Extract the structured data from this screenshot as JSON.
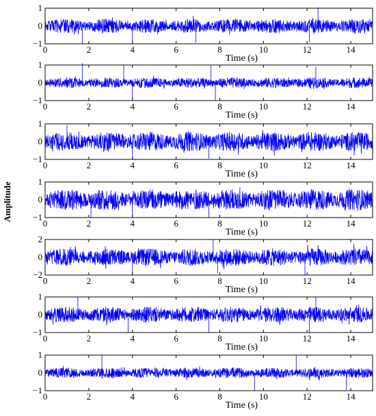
{
  "figure": {
    "shared_ylabel": "Amplitude"
  },
  "chart_data": [
    {
      "type": "line",
      "xlabel": "Time (s)",
      "ylabel": "",
      "xlim": [
        0,
        15
      ],
      "ylim": [
        -1,
        1
      ],
      "xticks": [
        0,
        2,
        4,
        6,
        8,
        10,
        12,
        14
      ],
      "yticks": [
        -1,
        0,
        1
      ],
      "grid": false,
      "series_color": "#0000ff",
      "signal_type": "vibration waveform",
      "envelope": 0.4,
      "period_s": 1.9,
      "peak_times": [
        1.7,
        4.0,
        6.9,
        12.1,
        12.5
      ],
      "peak_values": [
        -1.0,
        -0.9,
        -0.95,
        -0.9,
        1.05
      ]
    },
    {
      "type": "line",
      "xlabel": "Time (s)",
      "ylabel": "",
      "xlim": [
        0,
        15
      ],
      "ylim": [
        -1,
        1
      ],
      "xticks": [
        0,
        2,
        4,
        6,
        8,
        10,
        12,
        14
      ],
      "yticks": [
        -1,
        0,
        1
      ],
      "grid": false,
      "series_color": "#0000ff",
      "signal_type": "vibration waveform",
      "envelope": 0.3,
      "period_s": 1.9,
      "peak_times": [
        1.7,
        3.6,
        4.0,
        7.6,
        7.8,
        12.4
      ],
      "peak_values": [
        1.1,
        1.0,
        -0.9,
        1.0,
        -1.0,
        0.9
      ]
    },
    {
      "type": "line",
      "xlabel": "Time (s)",
      "ylabel": "",
      "xlim": [
        0,
        15
      ],
      "ylim": [
        -1,
        1
      ],
      "xticks": [
        0,
        2,
        4,
        6,
        8,
        10,
        12,
        14
      ],
      "yticks": [
        -1,
        0,
        1
      ],
      "grid": false,
      "series_color": "#0000ff",
      "signal_type": "vibration waveform",
      "envelope": 0.55,
      "period_s": 1.9,
      "peak_times": [
        1.0,
        4.0,
        7.5
      ],
      "peak_values": [
        0.95,
        -0.95,
        -0.95
      ]
    },
    {
      "type": "line",
      "xlabel": "Time (s)",
      "ylabel": "",
      "xlim": [
        0,
        15
      ],
      "ylim": [
        -1,
        1
      ],
      "xticks": [
        0,
        2,
        4,
        6,
        8,
        10,
        12,
        14
      ],
      "yticks": [
        -1,
        0,
        1
      ],
      "grid": false,
      "series_color": "#0000ff",
      "signal_type": "vibration waveform",
      "envelope": 0.6,
      "period_s": 1.9,
      "peak_times": [
        2.1,
        4.0,
        7.5
      ],
      "peak_values": [
        -1.0,
        -1.0,
        -1.0
      ]
    },
    {
      "type": "line",
      "xlabel": "Time (s)",
      "ylabel": "",
      "xlim": [
        0,
        15
      ],
      "ylim": [
        -2,
        2
      ],
      "xticks": [
        0,
        2,
        4,
        6,
        8,
        10,
        12,
        14
      ],
      "yticks": [
        -2,
        0,
        2
      ],
      "grid": false,
      "series_color": "#0000ff",
      "signal_type": "vibration waveform",
      "envelope": 0.5,
      "period_s": 1.9,
      "peak_times": [
        4.0,
        7.7,
        7.9,
        11.9
      ],
      "peak_values": [
        -2.0,
        2.0,
        -1.8,
        -2.0
      ]
    },
    {
      "type": "line",
      "xlabel": "Time (s)",
      "ylabel": "",
      "xlim": [
        0,
        15
      ],
      "ylim": [
        -1,
        1
      ],
      "xticks": [
        0,
        2,
        4,
        6,
        8,
        10,
        12,
        14
      ],
      "yticks": [
        -1,
        0,
        1
      ],
      "grid": false,
      "series_color": "#0000ff",
      "signal_type": "vibration waveform",
      "envelope": 0.45,
      "period_s": 1.9,
      "peak_times": [
        1.5,
        3.8,
        7.5,
        12.1,
        12.4
      ],
      "peak_values": [
        1.0,
        -1.0,
        -1.0,
        -1.05,
        1.0
      ]
    },
    {
      "type": "line",
      "xlabel": "Time (s)",
      "ylabel": "",
      "xlim": [
        0,
        15
      ],
      "ylim": [
        -1,
        1
      ],
      "xticks": [
        0,
        2,
        4,
        6,
        8,
        10,
        12,
        14
      ],
      "yticks": [
        -1,
        0,
        1
      ],
      "grid": false,
      "series_color": "#0000ff",
      "signal_type": "vibration waveform",
      "envelope": 0.3,
      "period_s": 1.9,
      "peak_times": [
        2.6,
        9.6,
        11.5,
        13.8
      ],
      "peak_values": [
        1.0,
        -1.0,
        1.0,
        -0.95
      ]
    }
  ]
}
